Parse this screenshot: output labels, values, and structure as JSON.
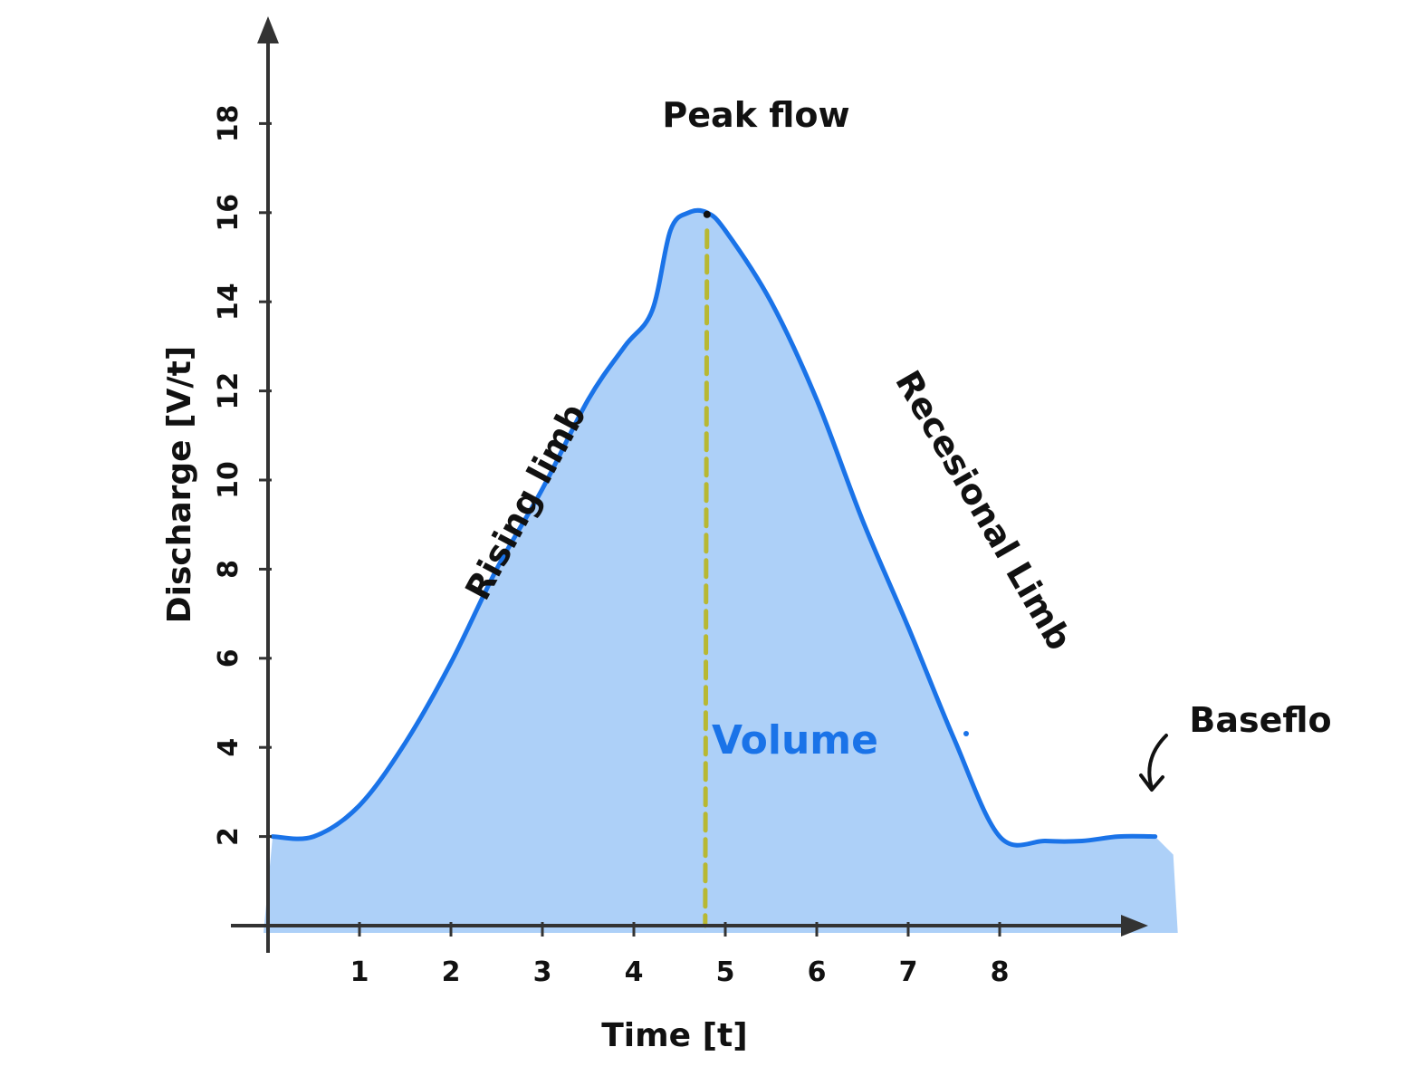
{
  "chart_data": {
    "type": "area",
    "title": "",
    "xlabel": "Time [t]",
    "ylabel": "Discharge [V/t]",
    "xlim": [
      0,
      9.7
    ],
    "ylim": [
      0,
      20
    ],
    "x_ticks": [
      "1",
      "2",
      "3",
      "4",
      "5",
      "6",
      "7",
      "8"
    ],
    "x_tick_values": [
      1,
      2,
      3,
      4,
      5,
      6,
      7,
      8
    ],
    "y_ticks": [
      "2",
      "4",
      "6",
      "8",
      "10",
      "12",
      "14",
      "16",
      "18"
    ],
    "y_tick_values": [
      2,
      4,
      6,
      8,
      10,
      12,
      14,
      16,
      18
    ],
    "grid": false,
    "series": [
      {
        "x": [
          0.05,
          0.5,
          1.0,
          1.5,
          2.0,
          2.5,
          3.0,
          3.5,
          3.9,
          4.2,
          4.4,
          4.6,
          4.8,
          5.0,
          5.5,
          6.0,
          6.5,
          7.0,
          7.5,
          8.0,
          8.5,
          8.9,
          9.3,
          9.7
        ],
        "values": [
          2.0,
          2.0,
          2.7,
          4.1,
          5.9,
          8.0,
          9.8,
          11.8,
          13.0,
          13.8,
          15.6,
          16.0,
          16.0,
          15.6,
          14.0,
          11.8,
          9.1,
          6.7,
          4.2,
          2.0,
          1.9,
          1.9,
          2.0,
          2.0
        ]
      }
    ],
    "peak_x": 4.8,
    "annotations": {
      "peak": "Peak flow",
      "rising": "Rising limb",
      "recession": "Recesional Limb",
      "volume": "Volume",
      "baseflow": "Baseflo"
    },
    "colors": {
      "curve": "#1a73e8",
      "fill": "#a9cdf8",
      "peak_line": "#b8b832",
      "axis": "#333333"
    }
  }
}
